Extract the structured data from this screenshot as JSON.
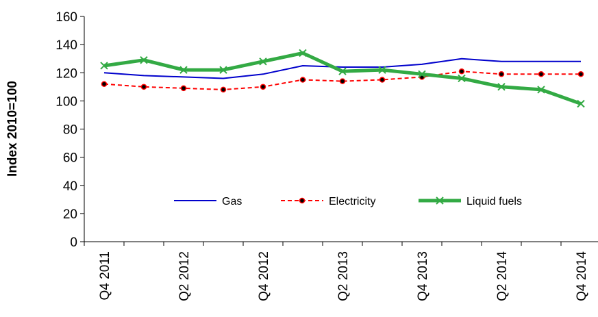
{
  "chart_data": {
    "type": "line",
    "title": "",
    "xlabel": "",
    "ylabel": "Index 2010=100",
    "ylim": [
      0,
      160
    ],
    "yticks": [
      0,
      20,
      40,
      60,
      80,
      100,
      120,
      140,
      160
    ],
    "grid": false,
    "legend_position": "bottom-center inside plot",
    "categories": [
      "Q4 2011",
      "",
      "Q2 2012",
      "",
      "Q4 2012",
      "",
      "Q2 2013",
      "",
      "Q4 2013",
      "",
      "Q2 2014",
      "",
      "Q4 2014"
    ],
    "series": [
      {
        "name": "Gas",
        "color": "#0000CC",
        "style": "solid",
        "marker": "none",
        "values": [
          120,
          118,
          117,
          116,
          119,
          125,
          124,
          124,
          126,
          130,
          128,
          128,
          128
        ]
      },
      {
        "name": "Electricity",
        "color": "#FF0000",
        "style": "dashed",
        "marker": "circle",
        "values": [
          112,
          110,
          109,
          108,
          110,
          115,
          114,
          115,
          117,
          121,
          119,
          119,
          119
        ]
      },
      {
        "name": "Liquid fuels",
        "color": "#33AA44",
        "style": "solid-thick",
        "marker": "x",
        "values": [
          125,
          129,
          122,
          122,
          128,
          134,
          121,
          122,
          119,
          116,
          110,
          108,
          98
        ]
      }
    ]
  }
}
